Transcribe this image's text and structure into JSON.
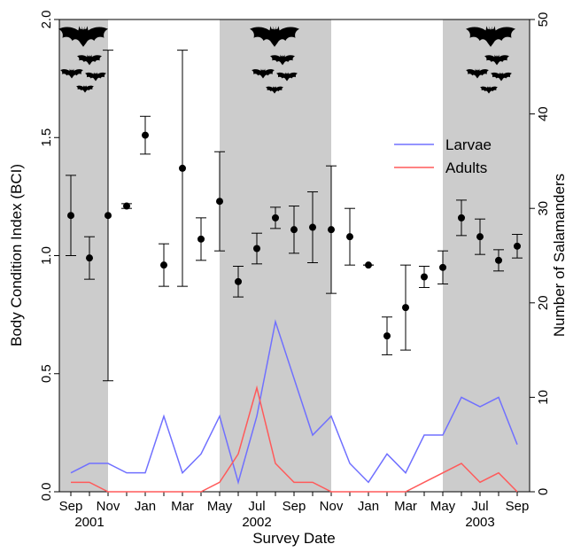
{
  "chart_data": {
    "type": "errorbar",
    "xlabel": "Survey Date",
    "ylabel": "Body Condition Index (BCI)",
    "y2label": "Number of Salamanders",
    "categories": [
      "Sep",
      null,
      "Nov",
      null,
      "Jan",
      null,
      "Mar",
      null,
      "May",
      null,
      "Jul",
      null,
      "Sep",
      null,
      "Nov",
      null,
      "Jan",
      null,
      "Mar",
      null,
      "May",
      null,
      "Jul",
      null,
      "Sep"
    ],
    "years": [
      "2001",
      "2002",
      "2003"
    ],
    "color": "#000000",
    "values": [
      1.17,
      0.99,
      1.17,
      1.21,
      1.51,
      0.96,
      1.37,
      1.07,
      1.23,
      0.89,
      1.03,
      1.16,
      1.11,
      1.12,
      1.11,
      1.08,
      0.96,
      0.66,
      0.78,
      0.91,
      0.95,
      1.16,
      1.08,
      0.98,
      1.04
    ],
    "errors": [
      0.17,
      0.09,
      0.7,
      0.01,
      0.08,
      0.09,
      0.5,
      0.09,
      0.21,
      0.065,
      0.065,
      0.045,
      0.1,
      0.15,
      0.27,
      0.12,
      0,
      0.08,
      0.18,
      0.045,
      0.07,
      0.075,
      0.075,
      0.045,
      0.05
    ],
    "series": [
      {
        "name": "Larvae",
        "color": "#7070ff",
        "axis": "y2",
        "values": [
          2,
          3,
          3,
          2,
          2,
          8,
          2,
          4,
          8,
          1,
          8,
          18,
          12,
          6,
          8,
          3,
          1,
          4,
          2,
          6,
          6,
          10,
          9,
          10,
          5
        ]
      },
      {
        "name": "Adults",
        "color": "#ff5a5a",
        "axis": "y2",
        "values": [
          1,
          1,
          0,
          0,
          0,
          0,
          0,
          0,
          1,
          4,
          11,
          3,
          1,
          1,
          0,
          0,
          0,
          0,
          0,
          1,
          2,
          3,
          1,
          2,
          0
        ]
      }
    ],
    "ylim": [
      0,
      2
    ],
    "yticks": [
      {
        "value": 0,
        "label": "0.0"
      },
      {
        "value": 0.5,
        "label": "0.5"
      },
      {
        "value": 1,
        "label": "1.0"
      },
      {
        "value": 1.5,
        "label": "1.5"
      },
      {
        "value": 2,
        "label": "2.0"
      }
    ],
    "y2lim": [
      0,
      50
    ],
    "y2ticks": [
      0,
      10,
      20,
      30,
      40,
      50
    ],
    "legend": "upper-right"
  }
}
